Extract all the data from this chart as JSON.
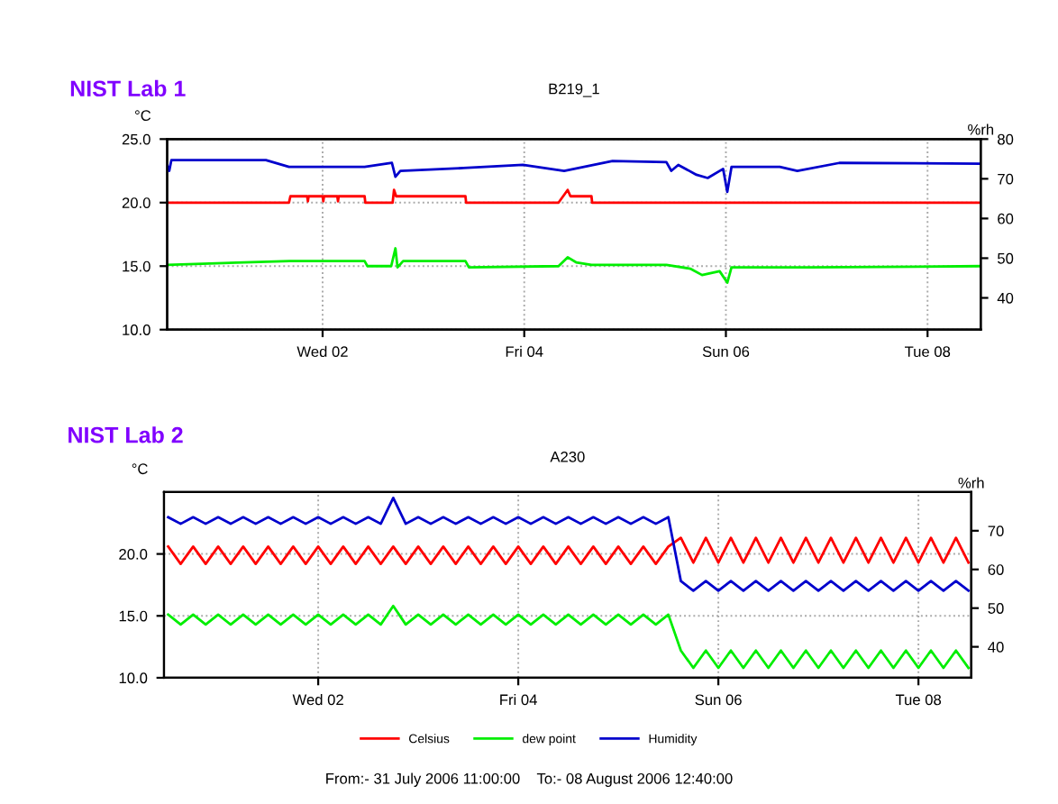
{
  "chart_data": [
    {
      "type": "line",
      "title": "B219_1",
      "ylabel": "°C",
      "y2label": "%rh",
      "annotations": [
        "NIST Lab 1"
      ],
      "xlim": [
        "2006-07-31T11:00",
        "2006-08-08T12:40"
      ],
      "xticks": [
        {
          "value": "2006-08-02",
          "label": "Wed 02"
        },
        {
          "value": "2006-08-04",
          "label": "Fri 04"
        },
        {
          "value": "2006-08-06",
          "label": "Sun 06"
        },
        {
          "value": "2006-08-08",
          "label": "Tue 08"
        }
      ],
      "ylim": [
        10,
        25
      ],
      "yticks": [
        {
          "value": 10,
          "label": "10.0"
        },
        {
          "value": 15,
          "label": "15.0"
        },
        {
          "value": 20,
          "label": "20.0"
        },
        {
          "value": 25,
          "label": "25.0"
        }
      ],
      "y2lim": [
        32,
        80
      ],
      "y2ticks": [
        40,
        50,
        60,
        70,
        80
      ],
      "grid": true,
      "line_style": "solid",
      "series": [
        {
          "color": "#ff0000",
          "x": [
            "2006-07-31T11:00",
            "2006-08-01T16:00",
            "2006-08-01T16:20",
            "2006-08-01T20:20",
            "2006-08-01T20:30",
            "2006-08-01T20:40",
            "2006-08-02T00:00",
            "2006-08-02T00:10",
            "2006-08-02T00:20",
            "2006-08-02T03:30",
            "2006-08-02T03:40",
            "2006-08-02T03:50",
            "2006-08-02T10:00",
            "2006-08-02T10:10",
            "2006-08-02T16:40",
            "2006-08-02T17:00",
            "2006-08-02T17:30",
            "2006-08-03T10:00",
            "2006-08-03T10:10",
            "2006-08-04T08:10",
            "2006-08-04T10:20",
            "2006-08-04T11:00",
            "2006-08-04T16:00",
            "2006-08-04T16:10",
            "2006-08-08T12:40"
          ],
          "values": [
            20.0,
            20.0,
            20.5,
            20.5,
            20.1,
            20.5,
            20.5,
            20.1,
            20.5,
            20.5,
            20.1,
            20.5,
            20.5,
            20.0,
            20.0,
            21.0,
            20.5,
            20.5,
            20.0,
            20.0,
            21.0,
            20.5,
            20.5,
            20.0,
            20.0
          ]
        },
        {
          "color": "#00ee00",
          "x": [
            "2006-07-31T11:00",
            "2006-08-01T16:10",
            "2006-08-02T10:00",
            "2006-08-02T10:40",
            "2006-08-02T16:20",
            "2006-08-02T17:20",
            "2006-08-02T17:50",
            "2006-08-02T19:10",
            "2006-08-03T10:00",
            "2006-08-03T10:50",
            "2006-08-04T08:10",
            "2006-08-04T10:20",
            "2006-08-04T12:20",
            "2006-08-04T16:00",
            "2006-08-05T09:50",
            "2006-08-05T15:30",
            "2006-08-05T18:20",
            "2006-08-05T22:30",
            "2006-08-06T00:20",
            "2006-08-06T01:20",
            "2006-08-06T19:50",
            "2006-08-08T12:40"
          ],
          "values": [
            15.1,
            15.4,
            15.4,
            15.0,
            15.0,
            16.4,
            14.9,
            15.4,
            15.4,
            14.9,
            15.0,
            15.7,
            15.3,
            15.1,
            15.1,
            14.8,
            14.3,
            14.6,
            13.7,
            14.9,
            14.9,
            15.0
          ]
        },
        {
          "color": "#0000cc",
          "axis": "y2",
          "x": [
            "2006-07-31T11:00",
            "2006-07-31T11:30",
            "2006-07-31T12:00",
            "2006-08-01T10:30",
            "2006-08-01T16:00",
            "2006-08-02T10:00",
            "2006-08-02T16:30",
            "2006-08-02T17:20",
            "2006-08-02T18:30",
            "2006-08-03T09:30",
            "2006-08-03T23:40",
            "2006-08-04T09:30",
            "2006-08-04T21:00",
            "2006-08-05T09:50",
            "2006-08-05T11:00",
            "2006-08-05T12:40",
            "2006-08-05T17:00",
            "2006-08-05T19:40",
            "2006-08-05T23:20",
            "2006-08-06T00:20",
            "2006-08-06T01:20",
            "2006-08-06T12:50",
            "2006-08-06T17:00",
            "2006-08-07T03:00",
            "2006-08-08T12:40"
          ],
          "values": [
            73.5,
            72,
            74.7,
            74.7,
            73,
            73,
            74,
            70.5,
            72,
            72.7,
            73.5,
            72,
            74.5,
            74.2,
            72,
            73.5,
            71,
            70.2,
            72.5,
            66.7,
            73,
            73,
            72,
            74,
            73.8
          ]
        }
      ]
    },
    {
      "type": "line",
      "title": "A230",
      "ylabel": "°C",
      "y2label": "%rh",
      "annotations": [
        "NIST Lab 2",
        "From:- 31 July 2006 11:00:00    To:- 08 August 2006 12:40:00"
      ],
      "xlim": [
        "2006-07-31T11:00",
        "2006-08-08T12:40"
      ],
      "xticks": [
        {
          "value": "2006-08-02",
          "label": "Wed 02"
        },
        {
          "value": "2006-08-04",
          "label": "Fri 04"
        },
        {
          "value": "2006-08-06",
          "label": "Sun 06"
        },
        {
          "value": "2006-08-08",
          "label": "Tue 08"
        }
      ],
      "ylim": [
        10,
        25
      ],
      "yticks": [
        {
          "value": 10,
          "label": "10.0"
        },
        {
          "value": 15,
          "label": "15.0"
        },
        {
          "value": 20,
          "label": "20.0"
        }
      ],
      "y2lim": [
        32,
        80
      ],
      "y2ticks": [
        40,
        50,
        60,
        70
      ],
      "grid": true,
      "legend": "bottom",
      "line_style": "solid",
      "x": [
        "2006-07-31T12:00",
        "2006-07-31T15:00",
        "2006-07-31T18:00",
        "2006-07-31T21:00",
        "2006-08-01T00:00",
        "2006-08-01T03:00",
        "2006-08-01T06:00",
        "2006-08-01T09:00",
        "2006-08-01T12:00",
        "2006-08-01T15:00",
        "2006-08-01T18:00",
        "2006-08-01T21:00",
        "2006-08-02T00:00",
        "2006-08-02T03:00",
        "2006-08-02T06:00",
        "2006-08-02T09:00",
        "2006-08-02T12:00",
        "2006-08-02T15:00",
        "2006-08-02T18:00",
        "2006-08-02T21:00",
        "2006-08-03T00:00",
        "2006-08-03T03:00",
        "2006-08-03T06:00",
        "2006-08-03T09:00",
        "2006-08-03T12:00",
        "2006-08-03T15:00",
        "2006-08-03T18:00",
        "2006-08-03T21:00",
        "2006-08-04T00:00",
        "2006-08-04T03:00",
        "2006-08-04T06:00",
        "2006-08-04T09:00",
        "2006-08-04T12:00",
        "2006-08-04T15:00",
        "2006-08-04T18:00",
        "2006-08-04T21:00",
        "2006-08-05T00:00",
        "2006-08-05T03:00",
        "2006-08-05T06:00",
        "2006-08-05T09:00",
        "2006-08-05T12:00",
        "2006-08-05T15:00",
        "2006-08-05T18:00",
        "2006-08-05T21:00",
        "2006-08-06T00:00",
        "2006-08-06T03:00",
        "2006-08-06T06:00",
        "2006-08-06T09:00",
        "2006-08-06T12:00",
        "2006-08-06T15:00",
        "2006-08-06T18:00",
        "2006-08-06T21:00",
        "2006-08-07T00:00",
        "2006-08-07T03:00",
        "2006-08-07T06:00",
        "2006-08-07T09:00",
        "2006-08-07T12:00",
        "2006-08-07T15:00",
        "2006-08-07T18:00",
        "2006-08-07T21:00",
        "2006-08-08T00:00",
        "2006-08-08T03:00",
        "2006-08-08T06:00",
        "2006-08-08T09:00",
        "2006-08-08T12:00"
      ],
      "series": [
        {
          "name": "Celsius",
          "color": "#ff0000",
          "values": [
            20.6,
            19.2,
            20.6,
            19.2,
            20.6,
            19.2,
            20.6,
            19.2,
            20.6,
            19.2,
            20.6,
            19.2,
            20.6,
            19.2,
            20.6,
            19.2,
            20.6,
            19.2,
            20.6,
            19.2,
            20.6,
            19.2,
            20.6,
            19.2,
            20.6,
            19.2,
            20.6,
            19.2,
            20.6,
            19.2,
            20.6,
            19.2,
            20.6,
            19.2,
            20.6,
            19.2,
            20.6,
            19.2,
            20.6,
            19.2,
            20.6,
            21.3,
            19.3,
            21.3,
            19.3,
            21.3,
            19.3,
            21.3,
            19.3,
            21.3,
            19.3,
            21.3,
            19.3,
            21.3,
            19.3,
            21.3,
            19.3,
            21.3,
            19.3,
            21.3,
            19.3,
            21.3,
            19.3,
            21.3,
            19.3
          ]
        },
        {
          "name": "dew point",
          "color": "#00ee00",
          "values": [
            15.1,
            14.3,
            15.1,
            14.3,
            15.1,
            14.3,
            15.1,
            14.3,
            15.1,
            14.3,
            15.1,
            14.3,
            15.1,
            14.3,
            15.1,
            14.3,
            15.1,
            14.3,
            15.8,
            14.3,
            15.1,
            14.3,
            15.1,
            14.3,
            15.1,
            14.3,
            15.1,
            14.3,
            15.1,
            14.3,
            15.1,
            14.3,
            15.1,
            14.3,
            15.1,
            14.3,
            15.1,
            14.3,
            15.1,
            14.3,
            15.1,
            12.2,
            10.8,
            12.2,
            10.8,
            12.2,
            10.8,
            12.2,
            10.8,
            12.2,
            10.8,
            12.2,
            10.8,
            12.2,
            10.8,
            12.2,
            10.8,
            12.2,
            10.8,
            12.2,
            10.8,
            12.2,
            10.8,
            12.2,
            10.8
          ]
        },
        {
          "name": "Humidity",
          "color": "#0000cc",
          "axis": "y2",
          "values": [
            73.5,
            71.8,
            73.5,
            71.8,
            73.5,
            71.8,
            73.5,
            71.8,
            73.5,
            71.8,
            73.5,
            71.8,
            73.5,
            71.8,
            73.5,
            71.8,
            73.5,
            71.8,
            78.5,
            71.8,
            73.5,
            71.8,
            73.5,
            71.8,
            73.5,
            71.8,
            73.5,
            71.8,
            73.5,
            71.8,
            73.5,
            71.8,
            73.5,
            71.8,
            73.5,
            71.8,
            73.5,
            71.8,
            73.5,
            71.8,
            73.5,
            57.0,
            54.5,
            57.0,
            54.5,
            57.0,
            54.5,
            57.0,
            54.5,
            57.0,
            54.5,
            57.0,
            54.5,
            57.0,
            54.5,
            57.0,
            54.5,
            57.0,
            54.5,
            57.0,
            54.5,
            57.0,
            54.5,
            57.0,
            54.5
          ]
        }
      ]
    }
  ]
}
